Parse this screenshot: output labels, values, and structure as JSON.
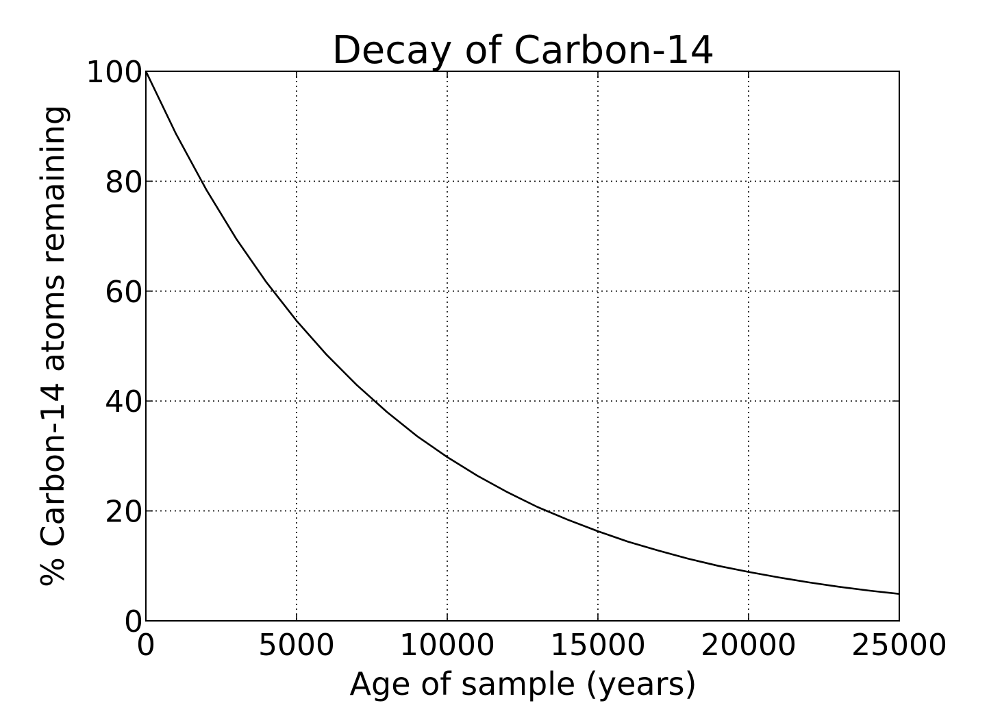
{
  "chart_data": {
    "type": "line",
    "title": "Decay of Carbon-14",
    "xlabel": "Age of sample (years)",
    "ylabel": "% Carbon-14 atoms remaining",
    "xlim": [
      0,
      25000
    ],
    "ylim": [
      0,
      100
    ],
    "xticks": [
      0,
      5000,
      10000,
      15000,
      20000,
      25000
    ],
    "xtick_labels": [
      "0",
      "5000",
      "10000",
      "15000",
      "20000",
      "25000"
    ],
    "yticks": [
      0,
      20,
      40,
      60,
      80,
      100
    ],
    "ytick_labels": [
      "0",
      "20",
      "40",
      "60",
      "80",
      "100"
    ],
    "grid": true,
    "series": [
      {
        "x": [
          0,
          1000,
          2000,
          3000,
          4000,
          5000,
          6000,
          7000,
          8000,
          9000,
          10000,
          11000,
          12000,
          13000,
          14000,
          15000,
          16000,
          17000,
          18000,
          19000,
          20000,
          21000,
          22000,
          23000,
          24000,
          25000
        ],
        "y": [
          100,
          88.6,
          78.5,
          69.5,
          61.6,
          54.6,
          48.4,
          42.9,
          38.0,
          33.6,
          29.8,
          26.4,
          23.4,
          20.7,
          18.4,
          16.3,
          14.4,
          12.8,
          11.3,
          10.0,
          8.9,
          7.9,
          7.0,
          6.2,
          5.5,
          4.9
        ],
        "color": "#000000"
      }
    ]
  }
}
